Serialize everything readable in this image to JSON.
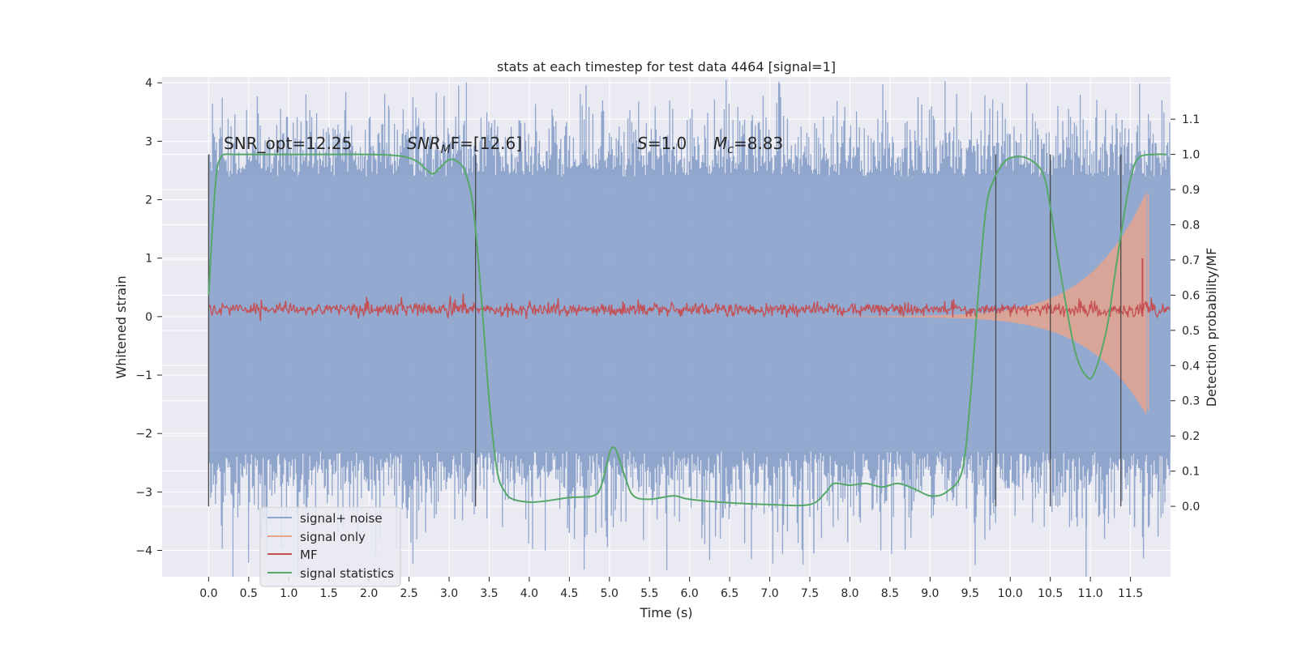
{
  "colors": {
    "background": "#eaeaf2",
    "grid": "#ffffff",
    "signal_noise": "#8fa5cc",
    "signal_only": "#e8a48a",
    "mf": "#c44e52",
    "stats": "#55a868",
    "vline": "#4a4a4a"
  },
  "chart_data": {
    "type": "line",
    "title": "stats at each timestep for test data 4464 [signal=1]",
    "xlabel": "Time (s)",
    "ylabel_left": "Whitened strain",
    "ylabel_right": "Detection probability/MF",
    "xlim": [
      -0.58,
      12.0
    ],
    "ylim_left": [
      -4.45,
      4.1
    ],
    "ylim_right": [
      -0.2,
      1.22
    ],
    "x_ticks": [
      "0.0",
      "0.5",
      "1.0",
      "1.5",
      "2.0",
      "2.5",
      "3.0",
      "3.5",
      "4.0",
      "4.5",
      "5.0",
      "5.5",
      "6.0",
      "6.5",
      "7.0",
      "7.5",
      "8.0",
      "8.5",
      "9.0",
      "9.5",
      "10.0",
      "10.5",
      "11.0",
      "11.5"
    ],
    "y_ticks_left": [
      "4",
      "3",
      "2",
      "1",
      "0",
      "−1",
      "−2",
      "−3",
      "−4"
    ],
    "y_ticks_right": [
      "1.1",
      "1.0",
      "0.9",
      "0.8",
      "0.7",
      "0.6",
      "0.5",
      "0.4",
      "0.3",
      "0.2",
      "0.1",
      "0.0"
    ],
    "grid": true,
    "legend_position": "lower-left",
    "annotations": [
      "SNR_opt=12.25",
      "SNR",
      "M",
      "F=[12.6]",
      "S",
      "=1.0",
      "M",
      "c",
      "=8.83"
    ],
    "series": [
      {
        "name": "signal+ noise",
        "kind": "noise-band",
        "x_range": [
          0.0,
          12.0
        ],
        "envelope_upper": 2.4,
        "envelope_lower": -2.3,
        "peak_max": 3.7,
        "peak_min": -4.1
      },
      {
        "name": "signal only",
        "kind": "chirp",
        "x_range": [
          7.5,
          11.7
        ],
        "amplitude_end": 2.2
      },
      {
        "name": "MF",
        "kind": "noisy-line",
        "x_range": [
          0.0,
          12.0
        ],
        "mean": 0.12,
        "spread": 0.12,
        "spike": {
          "x": 11.65,
          "y": 1.0
        }
      },
      {
        "name": "signal statistics",
        "kind": "line",
        "axis": "right",
        "x": [
          0.0,
          0.05,
          0.1,
          0.15,
          0.2,
          0.3,
          0.5,
          1.0,
          1.5,
          2.0,
          2.4,
          2.6,
          2.7,
          2.8,
          2.9,
          3.0,
          3.1,
          3.2,
          3.3,
          3.4,
          3.5,
          3.6,
          3.7,
          3.8,
          4.0,
          4.2,
          4.5,
          4.8,
          4.9,
          5.0,
          5.05,
          5.1,
          5.2,
          5.3,
          5.5,
          5.8,
          6.0,
          6.5,
          7.0,
          7.5,
          7.7,
          7.8,
          8.0,
          8.2,
          8.4,
          8.6,
          8.8,
          9.0,
          9.2,
          9.4,
          9.5,
          9.6,
          9.7,
          9.8,
          9.9,
          10.0,
          10.2,
          10.4,
          10.5,
          10.6,
          10.8,
          10.95,
          11.05,
          11.2,
          11.3,
          11.4,
          11.5,
          11.6,
          11.8,
          11.95
        ],
        "y": [
          0.6,
          0.8,
          0.95,
          0.99,
          1.0,
          1.0,
          1.0,
          1.0,
          1.0,
          1.0,
          0.995,
          0.98,
          0.96,
          0.945,
          0.965,
          0.985,
          0.98,
          0.95,
          0.85,
          0.6,
          0.3,
          0.1,
          0.04,
          0.02,
          0.012,
          0.015,
          0.025,
          0.03,
          0.06,
          0.15,
          0.168,
          0.15,
          0.08,
          0.03,
          0.02,
          0.03,
          0.02,
          0.01,
          0.005,
          0.005,
          0.04,
          0.065,
          0.06,
          0.065,
          0.055,
          0.065,
          0.05,
          0.03,
          0.04,
          0.1,
          0.3,
          0.6,
          0.85,
          0.93,
          0.97,
          0.99,
          0.99,
          0.95,
          0.85,
          0.7,
          0.45,
          0.37,
          0.38,
          0.5,
          0.65,
          0.8,
          0.93,
          0.99,
          1.0,
          1.0
        ]
      }
    ],
    "vertical_lines_x": [
      0.0,
      3.33,
      9.82,
      10.5,
      11.38
    ]
  }
}
